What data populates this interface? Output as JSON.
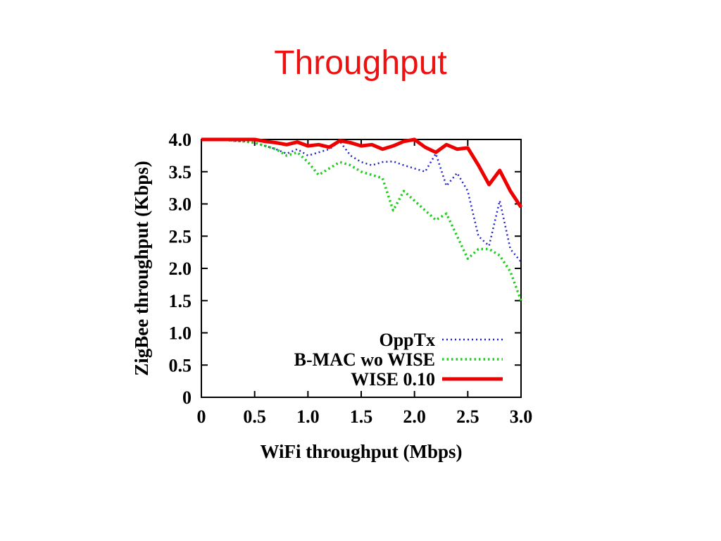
{
  "slide": {
    "title": "Throughput",
    "title_color": "#ee1111",
    "background": "#ffffff"
  },
  "chart_data": {
    "type": "line",
    "title": "Throughput",
    "xlabel": "WiFi throughput (Mbps)",
    "ylabel": "ZigBee throughput (Kbps)",
    "xlim": [
      0,
      3
    ],
    "ylim": [
      0,
      4
    ],
    "grid": false,
    "legend_position": "inside bottom-right",
    "xtick_values": [
      0,
      0.5,
      1.0,
      1.5,
      2.0,
      2.5,
      3.0
    ],
    "xtick_labels": [
      "0",
      "0.5",
      "1.0",
      "1.5",
      "2.0",
      "2.5",
      "3.0"
    ],
    "ytick_values": [
      0,
      0.5,
      1.0,
      1.5,
      2.0,
      2.5,
      3.0,
      3.5,
      4.0
    ],
    "ytick_labels": [
      "0",
      "0.5",
      "1.0",
      "1.5",
      "2.0",
      "2.5",
      "3.0",
      "3.5",
      "4.0"
    ],
    "x": [
      0,
      0.1,
      0.2,
      0.3,
      0.4,
      0.5,
      0.6,
      0.7,
      0.8,
      0.9,
      1.0,
      1.1,
      1.2,
      1.3,
      1.4,
      1.5,
      1.6,
      1.7,
      1.8,
      1.9,
      2.0,
      2.1,
      2.2,
      2.3,
      2.4,
      2.5,
      2.6,
      2.7,
      2.8,
      2.9,
      3.0
    ],
    "series": [
      {
        "name": "OppTx",
        "color": "#2222cc",
        "style": "dotted",
        "width": 2.5,
        "dash": "2,4",
        "y": [
          4.0,
          4.0,
          4.0,
          3.98,
          3.97,
          3.95,
          3.9,
          3.85,
          3.78,
          3.85,
          3.75,
          3.8,
          3.85,
          3.97,
          3.75,
          3.65,
          3.6,
          3.65,
          3.66,
          3.6,
          3.55,
          3.5,
          3.78,
          3.28,
          3.48,
          3.2,
          2.5,
          2.35,
          3.05,
          2.3,
          2.1
        ]
      },
      {
        "name": "B-MAC wo WISE",
        "color": "#22cc22",
        "style": "dotted",
        "width": 3.5,
        "dash": "2.5,4",
        "y": [
          4.0,
          4.0,
          4.0,
          3.98,
          3.97,
          3.95,
          3.9,
          3.85,
          3.75,
          3.8,
          3.65,
          3.45,
          3.55,
          3.65,
          3.6,
          3.5,
          3.45,
          3.4,
          2.9,
          3.2,
          3.05,
          2.9,
          2.75,
          2.85,
          2.5,
          2.15,
          2.3,
          2.3,
          2.2,
          1.95,
          1.5
        ]
      },
      {
        "name": "WISE 0.10",
        "color": "#ee0000",
        "style": "solid",
        "width": 5,
        "dash": "",
        "y": [
          4.0,
          4.0,
          4.0,
          4.0,
          4.0,
          4.0,
          3.97,
          3.95,
          3.92,
          3.96,
          3.9,
          3.92,
          3.88,
          3.98,
          3.95,
          3.9,
          3.92,
          3.85,
          3.9,
          3.97,
          4.0,
          3.88,
          3.8,
          3.92,
          3.85,
          3.87,
          3.6,
          3.3,
          3.52,
          3.2,
          2.95
        ]
      }
    ]
  }
}
